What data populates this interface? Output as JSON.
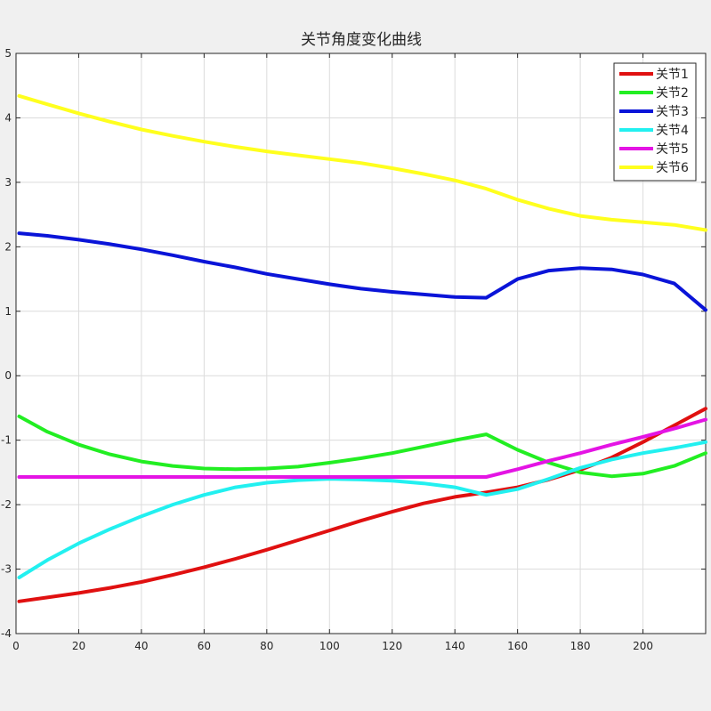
{
  "chart_data": {
    "type": "line",
    "title": "关节角度变化曲线",
    "xlabel": "",
    "ylabel": "",
    "xlim": [
      0,
      220
    ],
    "ylim": [
      -4,
      5
    ],
    "xticks": [
      0,
      20,
      40,
      60,
      80,
      100,
      120,
      140,
      160,
      180,
      200
    ],
    "yticks": [
      -4,
      -3,
      -2,
      -1,
      0,
      1,
      2,
      3,
      4,
      5
    ],
    "grid": true,
    "legend_position": "top-right",
    "x": [
      1,
      10,
      20,
      30,
      40,
      50,
      60,
      70,
      80,
      90,
      100,
      110,
      120,
      130,
      140,
      150,
      160,
      170,
      180,
      190,
      200,
      210,
      220
    ],
    "series": [
      {
        "name": "关节1",
        "color": "#e01010",
        "values": [
          -3.5,
          -3.44,
          -3.37,
          -3.29,
          -3.2,
          -3.09,
          -2.97,
          -2.84,
          -2.7,
          -2.55,
          -2.4,
          -2.25,
          -2.11,
          -1.98,
          -1.88,
          -1.81,
          -1.73,
          -1.61,
          -1.46,
          -1.27,
          -1.03,
          -0.77,
          -0.51
        ]
      },
      {
        "name": "关节2",
        "color": "#22ee22",
        "values": [
          -0.63,
          -0.87,
          -1.07,
          -1.22,
          -1.33,
          -1.4,
          -1.44,
          -1.45,
          -1.44,
          -1.41,
          -1.35,
          -1.28,
          -1.2,
          -1.1,
          -1.0,
          -0.91,
          -1.15,
          -1.35,
          -1.5,
          -1.56,
          -1.52,
          -1.4,
          -1.2
        ]
      },
      {
        "name": "关节3",
        "color": "#0a14d8",
        "values": [
          2.21,
          2.17,
          2.11,
          2.04,
          1.96,
          1.87,
          1.77,
          1.68,
          1.58,
          1.5,
          1.42,
          1.35,
          1.3,
          1.26,
          1.22,
          1.21,
          1.5,
          1.63,
          1.67,
          1.65,
          1.57,
          1.43,
          1.02
        ]
      },
      {
        "name": "关节4",
        "color": "#22f0f0",
        "values": [
          -3.13,
          -2.86,
          -2.6,
          -2.38,
          -2.18,
          -2.0,
          -1.85,
          -1.73,
          -1.66,
          -1.62,
          -1.6,
          -1.61,
          -1.63,
          -1.67,
          -1.73,
          -1.85,
          -1.76,
          -1.6,
          -1.43,
          -1.3,
          -1.2,
          -1.12,
          -1.03
        ]
      },
      {
        "name": "关节5",
        "color": "#e414e4",
        "values": [
          -1.57,
          -1.57,
          -1.57,
          -1.57,
          -1.57,
          -1.57,
          -1.57,
          -1.57,
          -1.57,
          -1.57,
          -1.57,
          -1.57,
          -1.57,
          -1.57,
          -1.57,
          -1.57,
          -1.45,
          -1.32,
          -1.2,
          -1.07,
          -0.95,
          -0.82,
          -0.68
        ]
      },
      {
        "name": "关节6",
        "color": "#ffff1e",
        "values": [
          4.34,
          4.21,
          4.07,
          3.94,
          3.82,
          3.72,
          3.63,
          3.55,
          3.48,
          3.42,
          3.36,
          3.3,
          3.22,
          3.13,
          3.03,
          2.9,
          2.73,
          2.59,
          2.48,
          2.42,
          2.38,
          2.34,
          2.26
        ]
      }
    ]
  }
}
